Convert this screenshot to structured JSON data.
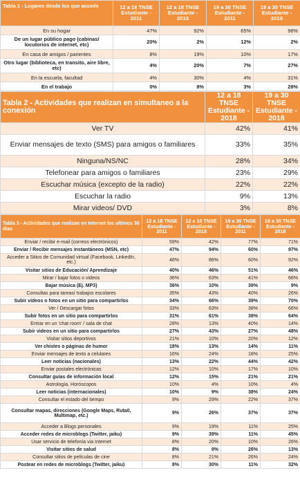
{
  "tables": [
    {
      "title": "Tabla 1 - Lugares desde los que accede",
      "headers": [
        "12 a 18 TNSE Estudiante - 2011",
        "12 a 18 TNSE Estudiante - 2018",
        "19 a 30 TNSE Estudiante - 2011",
        "19 a 30 TNSE Estudiante - 2018"
      ],
      "rows": [
        {
          "label": "En su hogar",
          "values": [
            "47%",
            "92%",
            "65%",
            "96%"
          ],
          "bold": false
        },
        {
          "label": "De un lugar público pago (cabinas/ locutorios de internet, etc)",
          "values": [
            "20%",
            "2%",
            "12%",
            "2%"
          ],
          "bold": true
        },
        {
          "label": "En casa de amigos / parientes",
          "values": [
            "8%",
            "19%",
            "10%",
            "17%"
          ],
          "bold": false
        },
        {
          "label": "Otro lugar (biblioteca, en transito, aire libre, etc)",
          "values": [
            "4%",
            "20%",
            "7%",
            "27%"
          ],
          "bold": true
        },
        {
          "label": "En la escuela, facultad",
          "values": [
            "4%",
            "30%",
            "4%",
            "31%"
          ],
          "bold": false
        },
        {
          "label": "En el trabajo",
          "values": [
            "0%",
            "8%",
            "3%",
            "28%"
          ],
          "bold": true
        }
      ]
    },
    {
      "title": "Tabla 2 - Actividades que realizan en simultaneo a la conexión",
      "headers": [
        "12 a 18 TNSE Estudiante - 2018",
        "19 a 30 TNSE Estudiante - 2018"
      ],
      "rows": [
        {
          "label": "Ver TV",
          "values": [
            "42%",
            "41%"
          ],
          "bold": false
        },
        {
          "label": "Enviar mensajes de texto (SMS) para amigos o familiares",
          "values": [
            "33%",
            "35%"
          ],
          "bold": false
        },
        {
          "label": "Ninguna/NS/NC",
          "values": [
            "28%",
            "34%"
          ],
          "bold": false
        },
        {
          "label": "Telefonear para amigos o familiares",
          "values": [
            "23%",
            "29%"
          ],
          "bold": false
        },
        {
          "label": "Escuchar música (excepto de la radio)",
          "values": [
            "22%",
            "22%"
          ],
          "bold": false
        },
        {
          "label": "Escuchar la radio",
          "values": [
            "9%",
            "13%"
          ],
          "bold": false
        },
        {
          "label": "Mirar videos/ DVD",
          "values": [
            "3%",
            "8%"
          ],
          "bold": false
        }
      ]
    },
    {
      "title": "Tabla 3 - Actividades que realizan en Internet los ultimos 30 días",
      "headers": [
        "12 a 18 TNSE Estudiante - 2011",
        "12 a 18 TNSE Estudiante - 2018",
        "19 a 30 TNSE Estudiante - 2011",
        "19 a 30 TNSE Estudiante - 2018"
      ],
      "rows": [
        {
          "label": "Enviar / recibir e-mail (correos electrónicos)",
          "values": [
            "59%",
            "42%",
            "77%",
            "71%"
          ],
          "bold": false
        },
        {
          "label": "Enviar / Recibir mensajes instantáneos (MSN, etc)",
          "values": [
            "47%",
            "94%",
            "60%",
            "97%"
          ],
          "bold": true
        },
        {
          "label": "Acceder a Sitios de Comunidad virtual (Facebook, LinkedIn, etc.)",
          "values": [
            "46%",
            "86%",
            "60%",
            "92%"
          ],
          "bold": false
        },
        {
          "label": "Visitar sitios de Educación/ Aprendizaje",
          "values": [
            "40%",
            "46%",
            "51%",
            "46%"
          ],
          "bold": true
        },
        {
          "label": "Mirar / bajar fotos o videos",
          "values": [
            "36%",
            "63%",
            "41%",
            "66%"
          ],
          "bold": false
        },
        {
          "label": "Bajar música (Ej. MP3)",
          "values": [
            "36%",
            "10%",
            "39%",
            "9%"
          ],
          "bold": true
        },
        {
          "label": "Consultas para tareas/ trabajos escolares",
          "values": [
            "35%",
            "43%",
            "40%",
            "26%"
          ],
          "bold": false
        },
        {
          "label": "Subir videos o fotos en un sitio para compartirlos",
          "values": [
            "34%",
            "66%",
            "39%",
            "70%"
          ],
          "bold": true
        },
        {
          "label": "Ver / Descargar fotos",
          "values": [
            "33%",
            "63%",
            "38%",
            "66%"
          ],
          "bold": false
        },
        {
          "label": "Subir fotos en un sitio para compartirlos",
          "values": [
            "31%",
            "61%",
            "38%",
            "64%"
          ],
          "bold": true
        },
        {
          "label": "Entrar en un 'chat room' / sala de chat",
          "values": [
            "28%",
            "13%",
            "40%",
            "14%"
          ],
          "bold": false
        },
        {
          "label": "Subir videos en un sitio para compartirlos",
          "values": [
            "27%",
            "43%",
            "27%",
            "48%"
          ],
          "bold": true
        },
        {
          "label": "Visitar sitios deportivos",
          "values": [
            "21%",
            "10%",
            "20%",
            "12%"
          ],
          "bold": false
        },
        {
          "label": "Ver chistes o páginas de humor",
          "values": [
            "18%",
            "13%",
            "14%",
            "11%"
          ],
          "bold": true
        },
        {
          "label": "Enviar mensajes de texto a celulares",
          "values": [
            "16%",
            "24%",
            "18%",
            "25%"
          ],
          "bold": false
        },
        {
          "label": "Leer noticias (nacionales)",
          "values": [
            "13%",
            "22%",
            "44%",
            "42%"
          ],
          "bold": true
        },
        {
          "label": "Enviar postales electrónicas",
          "values": [
            "12%",
            "10%",
            "17%",
            "10%"
          ],
          "bold": false
        },
        {
          "label": "Consultar guías de información local",
          "values": [
            "12%",
            "15%",
            "21%",
            "21%"
          ],
          "bold": true
        },
        {
          "label": "Astrología, Horóscopos",
          "values": [
            "10%",
            "4%",
            "10%",
            "4%"
          ],
          "bold": false
        },
        {
          "label": "Leer noticias (internacionales)",
          "values": [
            "10%",
            "9%",
            "38%",
            "24%"
          ],
          "bold": true
        },
        {
          "label": "Consultar el estado del tiempo",
          "values": [
            "9%",
            "29%",
            "22%",
            "37%"
          ],
          "bold": false
        },
        {
          "label": "Consultar mapas, direcciones (Google Maps, Ruta0, Multimap, etc.)",
          "values": [
            "9%",
            "26%",
            "37%",
            "37%"
          ],
          "bold": true
        },
        {
          "label": "Acceder a Blogs personales",
          "values": [
            "9%",
            "19%",
            "11%",
            "25%"
          ],
          "bold": false
        },
        {
          "label": "Acceder redes de microblogs (Twitter, jaiku)",
          "values": [
            "9%",
            "39%",
            "11%",
            "45%"
          ],
          "bold": true
        },
        {
          "label": "Usar servicio de telefonía via Internet",
          "values": [
            "8%",
            "20%",
            "10%",
            "26%"
          ],
          "bold": false
        },
        {
          "label": "Visitar sitios de salud",
          "values": [
            "8%",
            "9%",
            "26%",
            "13%"
          ],
          "bold": true
        },
        {
          "label": "Consultar sitios de películas de cine",
          "values": [
            "8%",
            "21%",
            "26%",
            "24%"
          ],
          "bold": false
        },
        {
          "label": "Postear en redes de microblogs (Twitter, jaiku)",
          "values": [
            "8%",
            "30%",
            "11%",
            "32%"
          ],
          "bold": true
        }
      ]
    }
  ]
}
